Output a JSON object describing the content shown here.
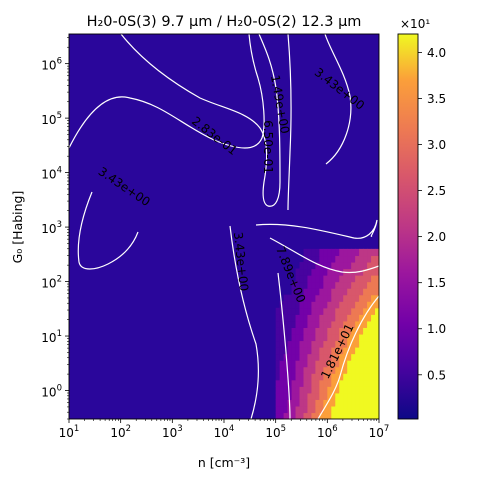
{
  "chart_data": {
    "type": "heatmap",
    "title": "H₂0-0S(3) 9.7 μm / H₂0-0S(2) 12.3 μm",
    "xlabel": "n [cm⁻³]",
    "ylabel": "G₀ [Habing]",
    "x_scale": "log",
    "y_scale": "log",
    "xlim": [
      10,
      10000000
    ],
    "ylim": [
      0.3,
      3500000
    ],
    "x_ticks": [
      {
        "value": 10,
        "base": "10",
        "exp": "1"
      },
      {
        "value": 100,
        "base": "10",
        "exp": "2"
      },
      {
        "value": 1000,
        "base": "10",
        "exp": "3"
      },
      {
        "value": 10000,
        "base": "10",
        "exp": "4"
      },
      {
        "value": 100000,
        "base": "10",
        "exp": "5"
      },
      {
        "value": 1000000,
        "base": "10",
        "exp": "6"
      },
      {
        "value": 10000000,
        "base": "10",
        "exp": "7"
      }
    ],
    "y_ticks": [
      {
        "value": 1,
        "base": "10",
        "exp": "0"
      },
      {
        "value": 10,
        "base": "10",
        "exp": "1"
      },
      {
        "value": 100,
        "base": "10",
        "exp": "2"
      },
      {
        "value": 1000,
        "base": "10",
        "exp": "3"
      },
      {
        "value": 10000,
        "base": "10",
        "exp": "4"
      },
      {
        "value": 100000,
        "base": "10",
        "exp": "5"
      },
      {
        "value": 1000000,
        "base": "10",
        "exp": "6"
      }
    ],
    "colormap": "plasma",
    "colorbar": {
      "range": [
        0.02,
        4.2
      ],
      "ticks": [
        0.5,
        1.0,
        1.5,
        2.0,
        2.5,
        3.0,
        3.5,
        4.0
      ],
      "tick_labels": [
        "0.5",
        "1.0",
        "1.5",
        "2.0",
        "2.5",
        "3.0",
        "3.5",
        "4.0"
      ],
      "multiplier": "×10¹"
    },
    "contours": [
      {
        "level": 0.283,
        "label": "2.83e-01",
        "label_at": [
          8000,
          60000
        ]
      },
      {
        "level": 0.65,
        "label": "6.50e-01",
        "label_at": [
          30000,
          30000
        ]
      },
      {
        "level": 1.49,
        "label": "1.49e+00",
        "label_at": [
          70000,
          250000
        ]
      },
      {
        "level": 3.43,
        "label": "3.43e+00",
        "label_at": [
          1500000,
          450000
        ]
      },
      {
        "level": 3.43,
        "label": "3.43e+00",
        "label_at": [
          100,
          6000
        ]
      },
      {
        "level": 3.43,
        "label": "3.43e+00",
        "label_at": [
          13000,
          200
        ]
      },
      {
        "level": 7.89,
        "label": "7.89e+00",
        "label_at": [
          190000,
          140
        ]
      },
      {
        "level": 18.1,
        "label": "1.81e+01",
        "label_at": [
          1300000,
          8
        ]
      }
    ],
    "grid": false,
    "legend": "none"
  },
  "colors": {
    "contour_line": "#ffffff",
    "contour_label": "#ffffff",
    "axes": "#000000"
  }
}
